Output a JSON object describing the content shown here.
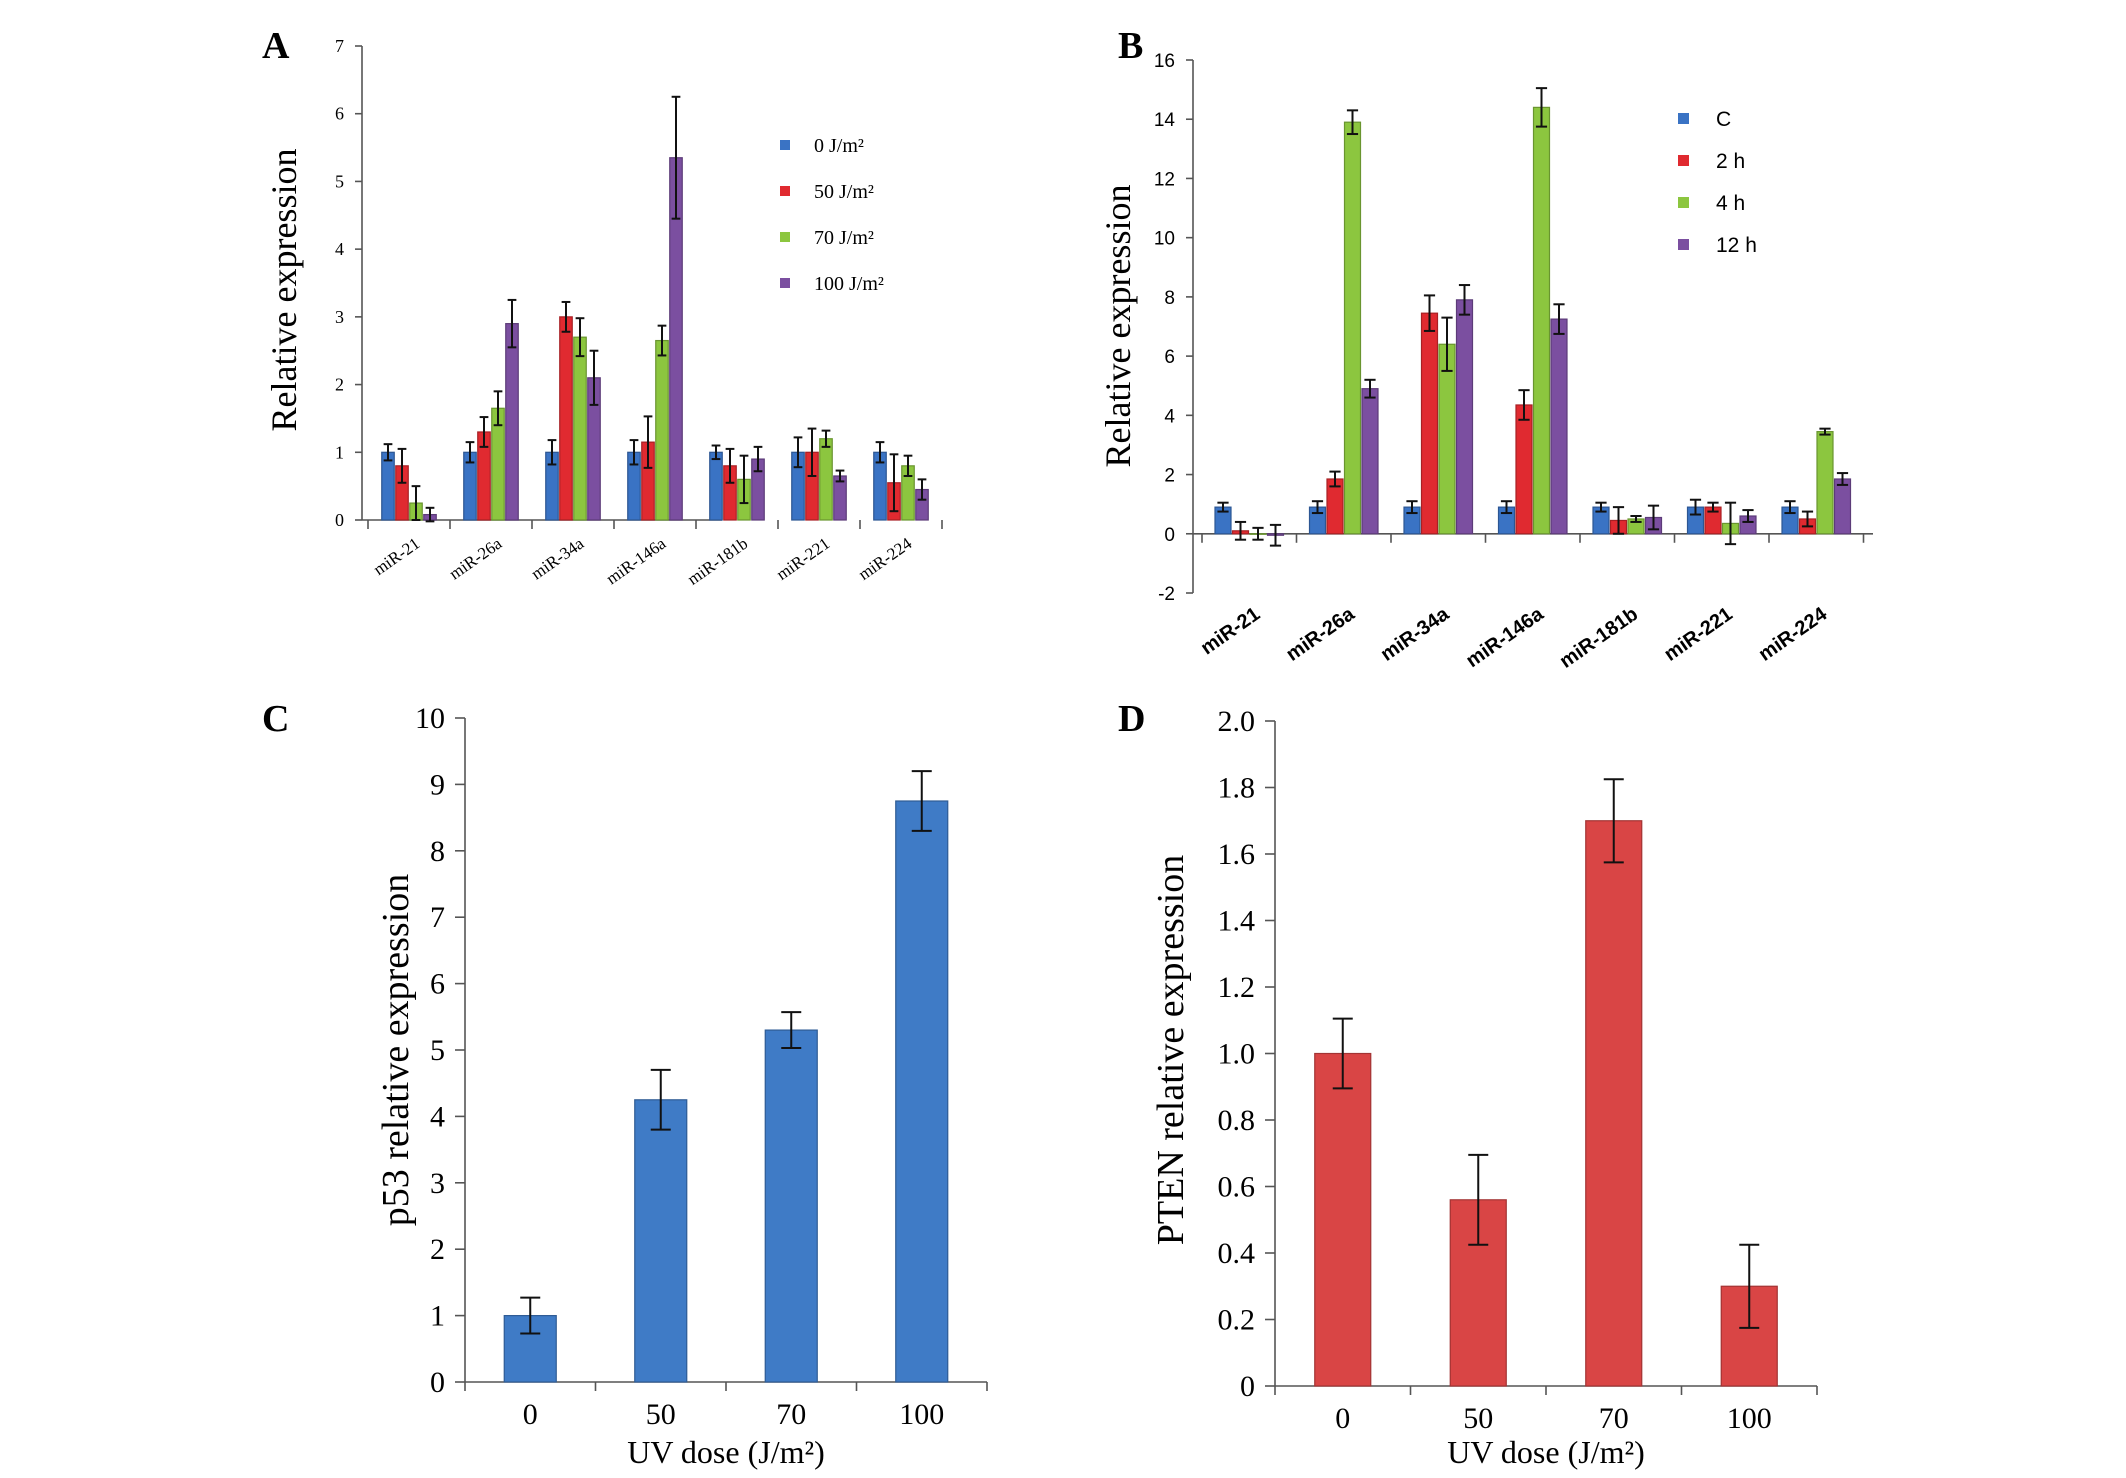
{
  "chart_data": [
    {
      "panel": "A",
      "type": "bar",
      "ylabel": "Relative expression",
      "xlabel": "",
      "ylim": [
        0,
        7
      ],
      "yticks": [
        0,
        1,
        2,
        3,
        4,
        5,
        6,
        7
      ],
      "categories": [
        "miR-21",
        "miR-26a",
        "miR-34a",
        "miR-146a",
        "miR-181b",
        "miR-221",
        "miR-224"
      ],
      "series": [
        {
          "name": "0 J/m²",
          "color": "#3a73c4",
          "values": [
            1.0,
            1.0,
            1.0,
            1.0,
            1.0,
            1.0,
            1.0
          ],
          "errors": [
            0.12,
            0.15,
            0.18,
            0.18,
            0.1,
            0.22,
            0.15
          ]
        },
        {
          "name": "50 J/m²",
          "color": "#e02a30",
          "values": [
            0.8,
            1.3,
            3.0,
            1.15,
            0.8,
            1.0,
            0.55
          ],
          "errors": [
            0.25,
            0.22,
            0.22,
            0.38,
            0.25,
            0.35,
            0.42
          ]
        },
        {
          "name": "70 J/m²",
          "color": "#8cc63f",
          "values": [
            0.25,
            1.65,
            2.7,
            2.65,
            0.6,
            1.2,
            0.8
          ],
          "errors": [
            0.25,
            0.25,
            0.28,
            0.22,
            0.35,
            0.12,
            0.15
          ]
        },
        {
          "name": "100 J/m²",
          "color": "#7b4fa0",
          "values": [
            0.08,
            2.9,
            2.1,
            5.35,
            0.9,
            0.65,
            0.45
          ],
          "errors": [
            0.1,
            0.35,
            0.4,
            0.9,
            0.18,
            0.08,
            0.15
          ]
        }
      ]
    },
    {
      "panel": "B",
      "type": "bar",
      "ylabel": "Relative expression",
      "xlabel": "",
      "ylim": [
        -2,
        16
      ],
      "yticks": [
        -2,
        0,
        2,
        4,
        6,
        8,
        10,
        12,
        14,
        16
      ],
      "categories": [
        "miR-21",
        "miR-26a",
        "miR-34a",
        "miR-146a",
        "miR-181b",
        "miR-221",
        "miR-224"
      ],
      "series": [
        {
          "name": "C",
          "color": "#3a73c4",
          "values": [
            0.9,
            0.9,
            0.9,
            0.9,
            0.9,
            0.9,
            0.9
          ],
          "errors": [
            0.15,
            0.2,
            0.2,
            0.2,
            0.15,
            0.25,
            0.2
          ]
        },
        {
          "name": "2 h",
          "color": "#e02a30",
          "values": [
            0.1,
            1.85,
            7.45,
            4.35,
            0.45,
            0.9,
            0.5
          ],
          "errors": [
            0.3,
            0.25,
            0.6,
            0.5,
            0.45,
            0.15,
            0.25
          ]
        },
        {
          "name": "4 h",
          "color": "#8cc63f",
          "values": [
            0.0,
            13.9,
            6.4,
            14.4,
            0.5,
            0.35,
            3.45
          ],
          "errors": [
            0.2,
            0.4,
            0.9,
            0.65,
            0.1,
            0.7,
            0.1
          ]
        },
        {
          "name": "12 h",
          "color": "#7b4fa0",
          "values": [
            -0.05,
            4.9,
            7.9,
            7.25,
            0.55,
            0.6,
            1.85
          ],
          "errors": [
            0.35,
            0.3,
            0.5,
            0.5,
            0.4,
            0.2,
            0.2
          ]
        }
      ]
    },
    {
      "panel": "C",
      "type": "bar",
      "ylabel": "p53 relative expression",
      "xlabel": "UV dose (J/m²)",
      "ylim": [
        0,
        10
      ],
      "yticks": [
        0,
        1,
        2,
        3,
        4,
        5,
        6,
        7,
        8,
        9,
        10
      ],
      "categories": [
        "0",
        "50",
        "70",
        "100"
      ],
      "series": [
        {
          "name": "p53",
          "color": "#3f7bc6",
          "values": [
            1.0,
            4.25,
            5.3,
            8.75
          ],
          "errors": [
            0.27,
            0.45,
            0.27,
            0.45
          ]
        }
      ]
    },
    {
      "panel": "D",
      "type": "bar",
      "ylabel": "PTEN relative expression",
      "xlabel": "UV dose (J/m²)",
      "ylim": [
        0,
        2.0
      ],
      "yticks": [
        "0",
        "0.2",
        "0.4",
        "0.6",
        "0.8",
        "1.0",
        "1.2",
        "1.4",
        "1.6",
        "1.8",
        "2.0"
      ],
      "categories": [
        "0",
        "50",
        "70",
        "100"
      ],
      "series": [
        {
          "name": "PTEN",
          "color": "#d94545",
          "values": [
            1.0,
            0.56,
            1.7,
            0.3
          ],
          "errors": [
            0.105,
            0.135,
            0.125,
            0.125
          ]
        }
      ]
    }
  ]
}
